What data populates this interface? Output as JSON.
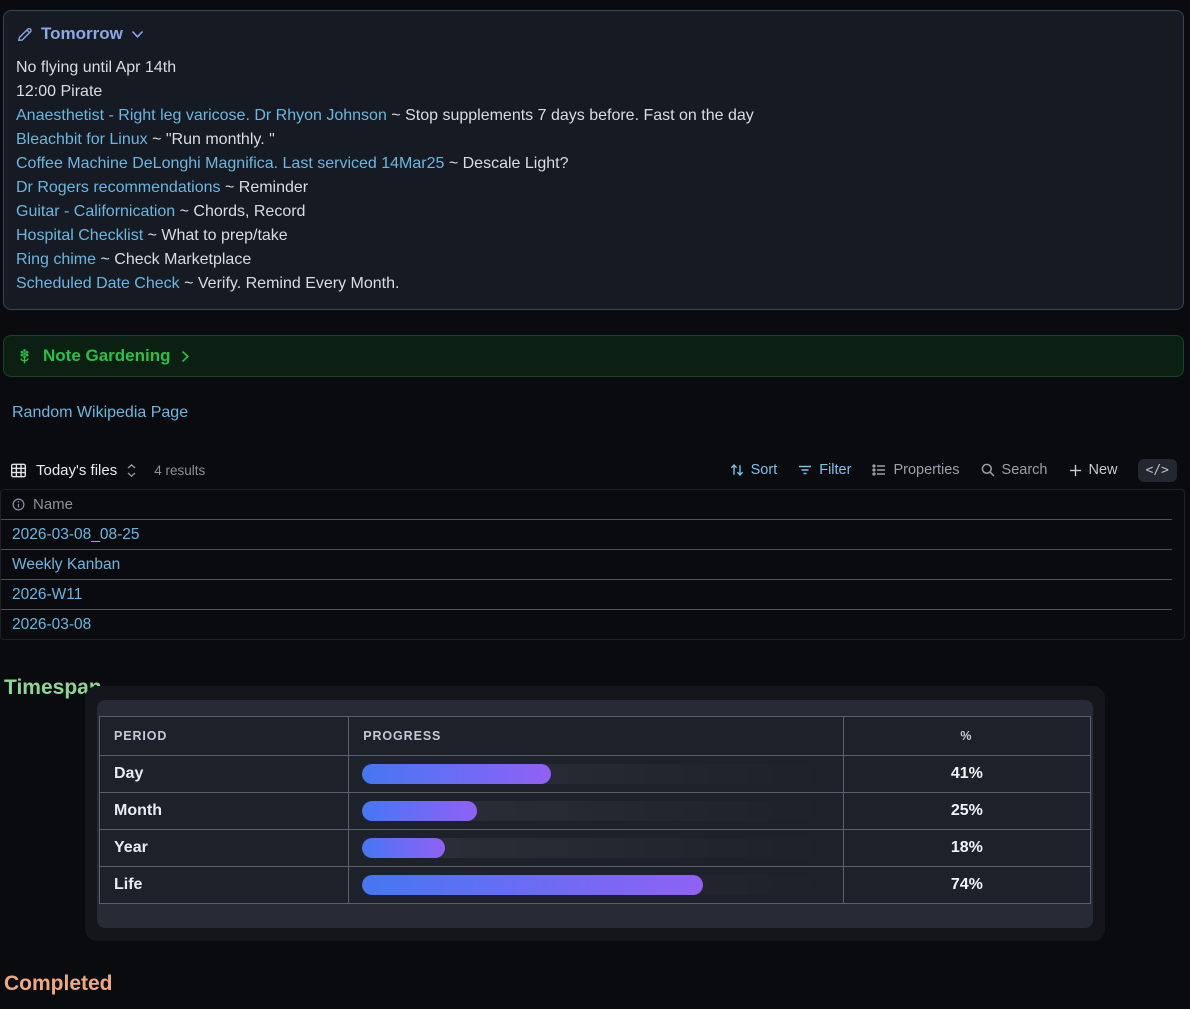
{
  "tomorrow": {
    "title": "Tomorrow",
    "lines": [
      {
        "link": "",
        "text": "No flying until Apr 14th"
      },
      {
        "link": "",
        "text": "12:00 Pirate"
      },
      {
        "link": "Anaesthetist - Right leg varicose. Dr Rhyon Johnson",
        "text": " ~ Stop supplements 7 days before. Fast on the day"
      },
      {
        "link": "Bleachbit for Linux",
        "text": " ~ \"Run monthly. \""
      },
      {
        "link": "Coffee Machine DeLonghi Magnifica. Last serviced 14Mar25",
        "text": " ~ Descale Light?"
      },
      {
        "link": "Dr Rogers recommendations",
        "text": " ~ Reminder"
      },
      {
        "link": "Guitar - Californication",
        "text": " ~ Chords, Record"
      },
      {
        "link": "Hospital Checklist",
        "text": " ~ What to prep/take"
      },
      {
        "link": "Ring chime",
        "text": " ~ Check Marketplace"
      },
      {
        "link": "Scheduled Date Check",
        "text": " ~ Verify. Remind Every Month."
      }
    ]
  },
  "note_gardening": {
    "title": "Note Gardening"
  },
  "wikipedia_link": "Random Wikipedia Page",
  "files": {
    "title": "Today's files",
    "results": "4 results",
    "toolbar": {
      "sort": "Sort",
      "filter": "Filter",
      "properties": "Properties",
      "search": "Search",
      "new": "New",
      "code_label": "</>"
    },
    "column": "Name",
    "rows": [
      "2026-03-08_08-25",
      "Weekly Kanban",
      "2026-W11",
      "2026-03-08"
    ]
  },
  "timespan": {
    "heading": "Timespan",
    "columns": [
      "PERIOD",
      "PROGRESS",
      "%"
    ],
    "rows": [
      {
        "period": "Day",
        "pct": 41,
        "pct_label": "41%"
      },
      {
        "period": "Month",
        "pct": 25,
        "pct_label": "25%"
      },
      {
        "period": "Year",
        "pct": 18,
        "pct_label": "18%"
      },
      {
        "period": "Life",
        "pct": 74,
        "pct_label": "74%"
      }
    ]
  },
  "completed": {
    "heading": "Completed"
  },
  "colors": {
    "link": "#69b7e3",
    "title_blue": "#8ba7e8",
    "gardening_green": "#25c244",
    "heading_green": "#8fd694",
    "heading_orange": "#edaa80",
    "bar_gradient_start": "#4577f3",
    "bar_gradient_end": "#9061f4",
    "toolbar_active": "#7dc2e8"
  }
}
